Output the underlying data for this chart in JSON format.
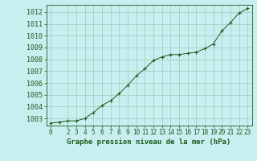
{
  "x": [
    0,
    1,
    2,
    3,
    4,
    5,
    6,
    7,
    8,
    9,
    10,
    11,
    12,
    13,
    14,
    15,
    16,
    17,
    18,
    19,
    20,
    21,
    22,
    23
  ],
  "y": [
    1002.6,
    1002.7,
    1002.8,
    1002.8,
    1003.0,
    1003.5,
    1004.1,
    1004.5,
    1005.1,
    1005.8,
    1006.6,
    1007.2,
    1007.9,
    1008.2,
    1008.4,
    1008.4,
    1008.5,
    1008.6,
    1008.9,
    1009.3,
    1010.4,
    1011.1,
    1011.9,
    1012.3
  ],
  "ylim": [
    1002.4,
    1012.6
  ],
  "yticks": [
    1003,
    1004,
    1005,
    1006,
    1007,
    1008,
    1009,
    1010,
    1011,
    1012
  ],
  "xlim": [
    -0.5,
    23.5
  ],
  "xticks": [
    0,
    2,
    3,
    4,
    5,
    6,
    7,
    8,
    9,
    10,
    11,
    12,
    13,
    14,
    15,
    16,
    17,
    18,
    19,
    20,
    21,
    22,
    23
  ],
  "line_color": "#1a5c1a",
  "marker_color": "#1a5c1a",
  "bg_color": "#c8eef0",
  "grid_color": "#99ccbb",
  "xlabel": "Graphe pression niveau de la mer (hPa)",
  "xlabel_color": "#1a5c1a",
  "xlabel_fontsize": 6.5,
  "tick_fontsize": 6,
  "tick_color": "#1a5c1a"
}
